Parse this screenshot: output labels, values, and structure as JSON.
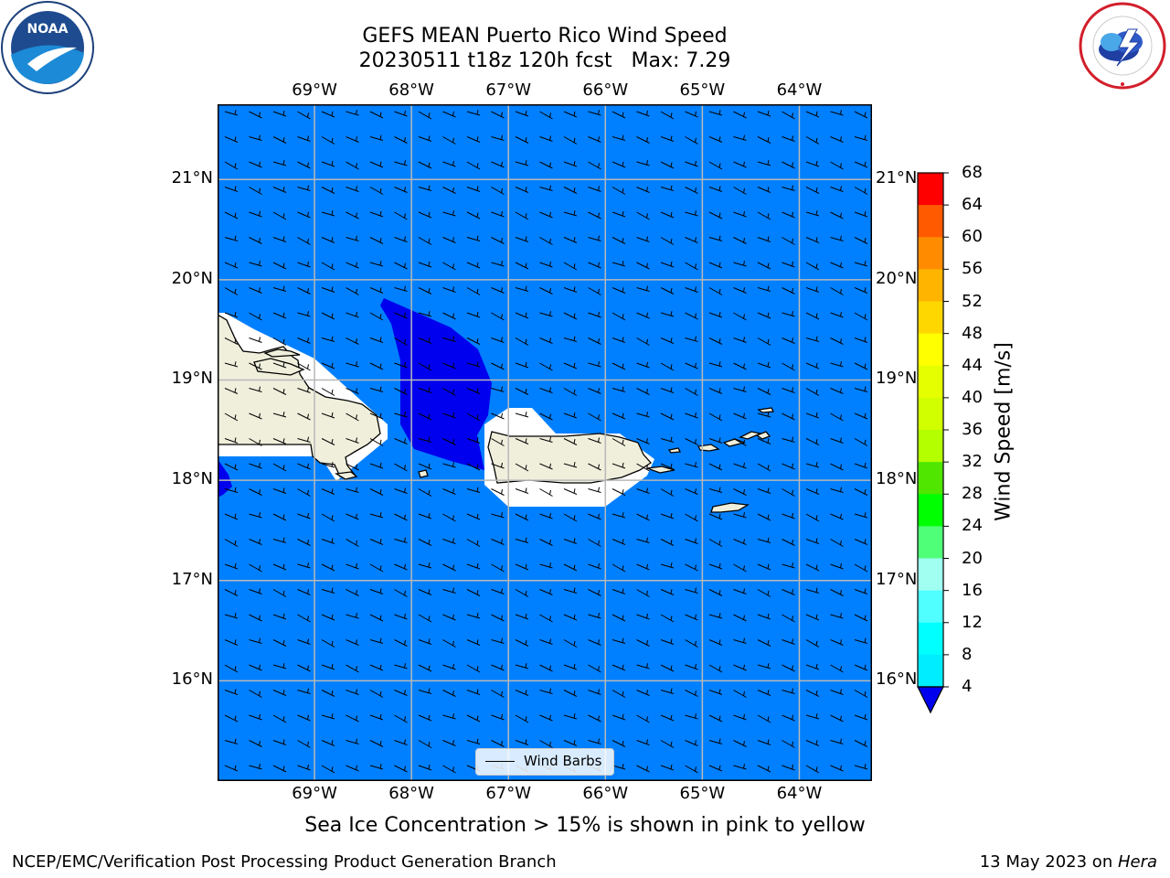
{
  "header": {
    "title_line1": "GEFS MEAN Puerto Rico Wind Speed",
    "title_line2": "20230511 t18z 120h fcst   Max: 7.29"
  },
  "logos": {
    "noaa": {
      "text": "NOAA",
      "ring_text": "NATIONAL OCEANIC AND ATMOSPHERIC ADMINISTRATION · U.S. DEPARTMENT OF COMMERCE"
    },
    "nws": {
      "ring_text": "NATIONAL WEATHER SERVICE"
    }
  },
  "map": {
    "lon_labels": [
      "69°W",
      "68°W",
      "67°W",
      "66°W",
      "65°W",
      "64°W"
    ],
    "lat_labels": [
      "21°N",
      "20°N",
      "19°N",
      "18°N",
      "17°N",
      "16°N"
    ],
    "lon_range": [
      -70.0,
      -63.25
    ],
    "lat_range": [
      15.0,
      21.75
    ],
    "gridlines": true,
    "ocean_color": "#0080ff",
    "dark_region_color": "#0000ee",
    "land_color": "#efefdc",
    "wind_direction": "from east-northeast (easterly trade winds)",
    "legend_entry": "Wind Barbs"
  },
  "colorbar": {
    "title": "Wind Speed [m/s]",
    "ticks": [
      "68",
      "64",
      "60",
      "56",
      "52",
      "48",
      "44",
      "40",
      "36",
      "32",
      "28",
      "24",
      "20",
      "16",
      "12",
      "8",
      "4"
    ],
    "colors": [
      "#ff0000",
      "#ff2000",
      "#ff5a00",
      "#ff8c00",
      "#ffb400",
      "#ffd700",
      "#ffff00",
      "#e6ff00",
      "#d2ff00",
      "#b4ff00",
      "#50e600",
      "#00ff00",
      "#50ff78",
      "#a0fff0",
      "#50ffff",
      "#00ffff",
      "#00ecff",
      "#0080ff"
    ],
    "under_color": "#0000ee"
  },
  "caption": "Sea Ice Concentration > 15% is shown in pink to yellow",
  "footer": {
    "left": "NCEP/EMC/Verification Post Processing Product Generation Branch",
    "right_prefix": "13 May 2023 on ",
    "right_italic": "Hera"
  }
}
